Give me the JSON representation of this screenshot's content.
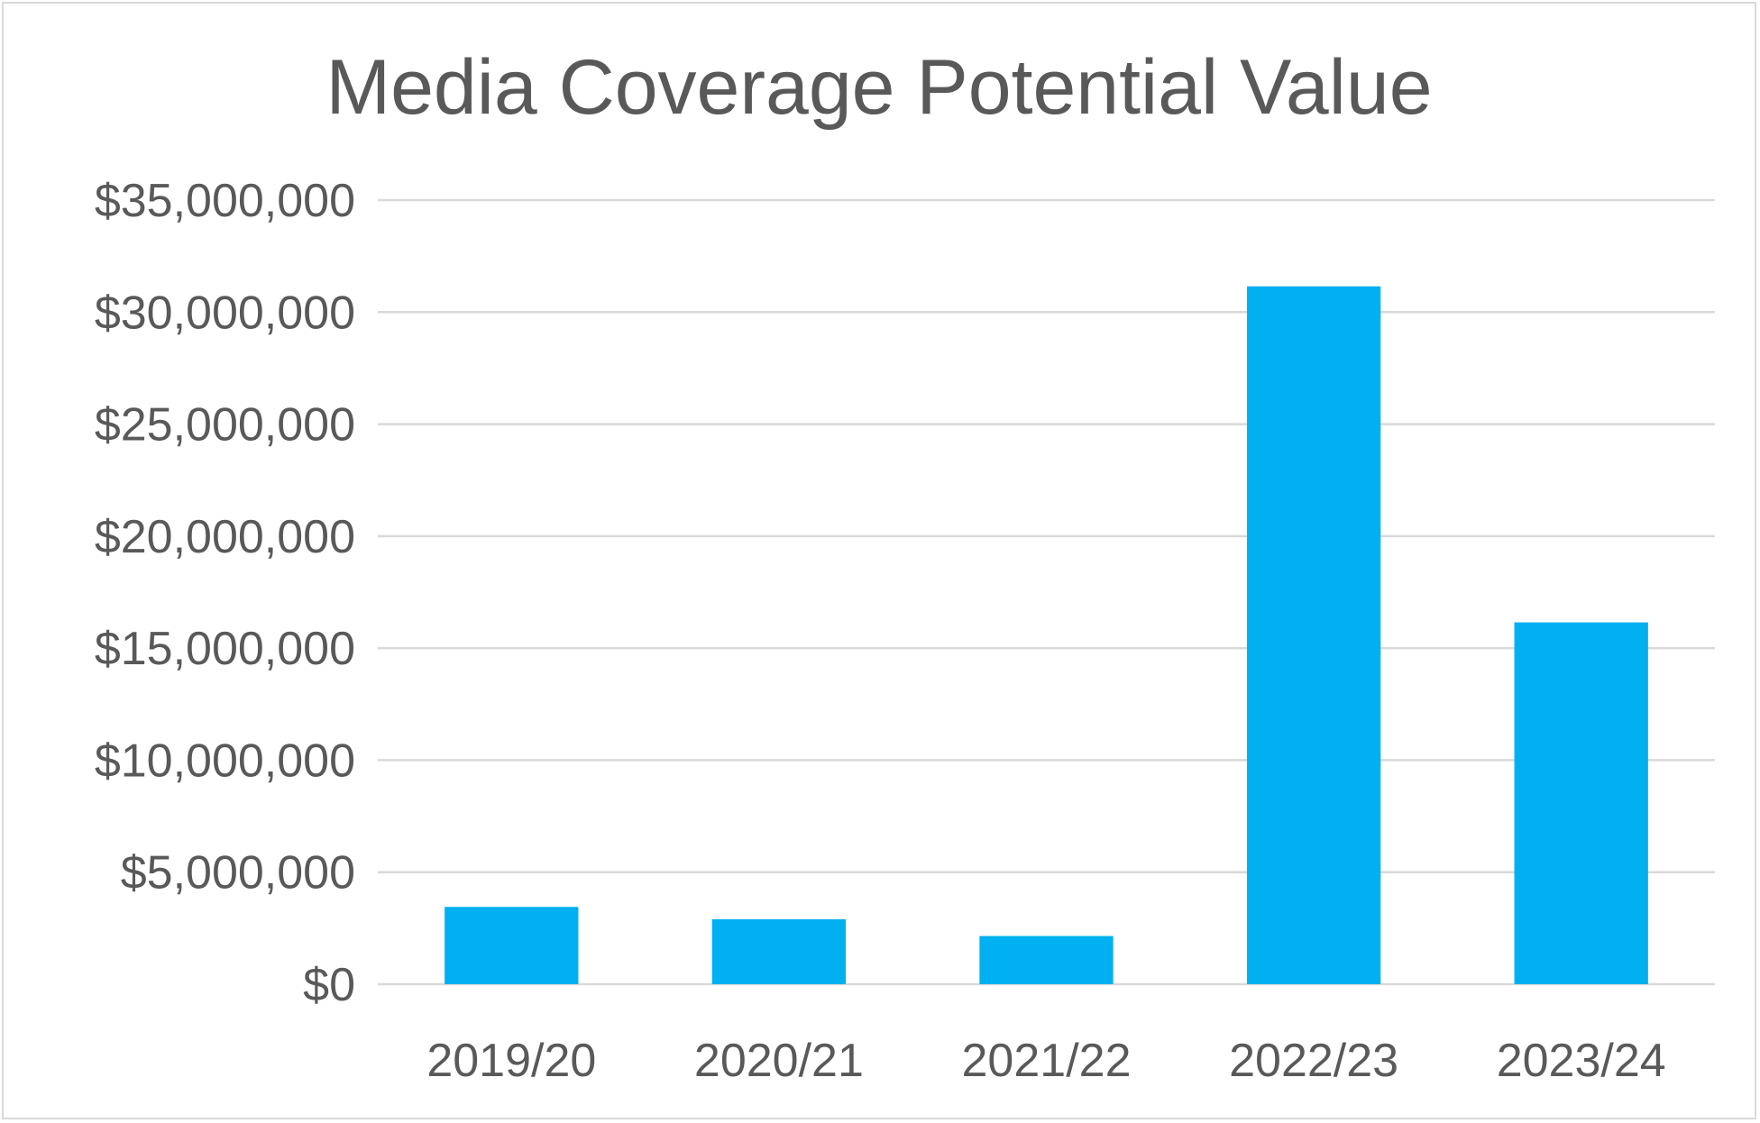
{
  "chart_data": {
    "type": "bar",
    "title": "Media Coverage Potential Value",
    "xlabel": "",
    "ylabel": "",
    "categories": [
      "2019/20",
      "2020/21",
      "2021/22",
      "2022/23",
      "2023/24"
    ],
    "values": [
      3450000,
      2900000,
      2150000,
      31150000,
      16150000
    ],
    "ylim": [
      0,
      35000000
    ],
    "y_ticks": [
      0,
      5000000,
      10000000,
      15000000,
      20000000,
      25000000,
      30000000,
      35000000
    ],
    "y_tick_labels": [
      "$0",
      "$5,000,000",
      "$10,000,000",
      "$15,000,000",
      "$20,000,000",
      "$25,000,000",
      "$30,000,000",
      "$35,000,000"
    ],
    "grid": true,
    "legend": "none",
    "bar_color": "#00B0F0"
  }
}
